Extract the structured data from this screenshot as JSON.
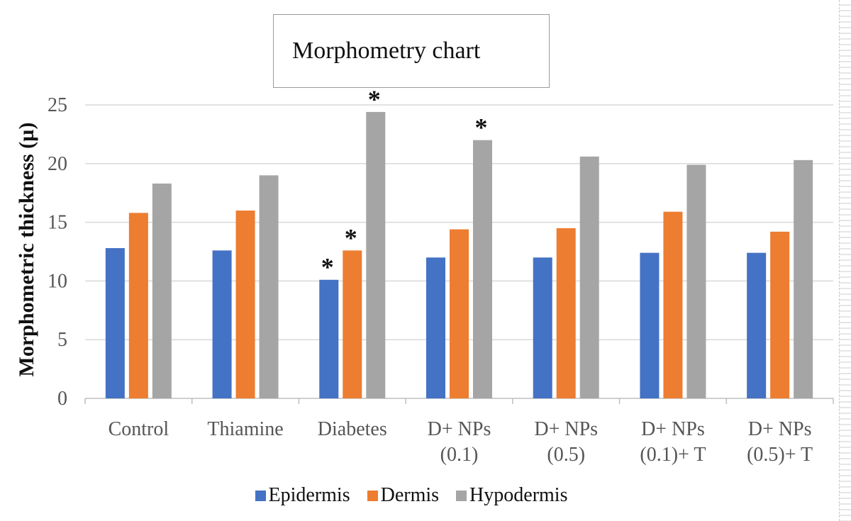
{
  "chart_data": {
    "type": "bar",
    "title": "Morphometry chart",
    "ylabel": "Morphometric thickness (µ)",
    "xlabel": "",
    "ylim": [
      0,
      25
    ],
    "yticks": [
      0,
      5,
      10,
      15,
      20,
      25
    ],
    "grid": true,
    "legend_position": "bottom",
    "categories": [
      [
        "Control"
      ],
      [
        "Thiamine"
      ],
      [
        "Diabetes"
      ],
      [
        "D+ NPs",
        "(0.1)"
      ],
      [
        "D+ NPs",
        "(0.5)"
      ],
      [
        "D+ NPs",
        "(0.1)+ T"
      ],
      [
        "D+ NPs",
        "(0.5)+ T"
      ]
    ],
    "series": [
      {
        "name": "Epidermis",
        "color": "#4472c4",
        "values": [
          12.8,
          12.6,
          10.1,
          12.0,
          12.0,
          12.4,
          12.4
        ]
      },
      {
        "name": "Dermis",
        "color": "#ed7d31",
        "values": [
          15.8,
          16.0,
          12.6,
          14.4,
          14.5,
          15.9,
          14.2
        ]
      },
      {
        "name": "Hypodermis",
        "color": "#a5a5a5",
        "values": [
          18.3,
          19.0,
          24.4,
          22.0,
          20.6,
          19.9,
          20.3
        ]
      }
    ],
    "annotations": [
      {
        "text": "*",
        "category_index": 2,
        "series_index": 0
      },
      {
        "text": "*",
        "category_index": 2,
        "series_index": 1
      },
      {
        "text": "*",
        "category_index": 2,
        "series_index": 2
      },
      {
        "text": "*",
        "category_index": 3,
        "series_index": 2
      }
    ]
  }
}
